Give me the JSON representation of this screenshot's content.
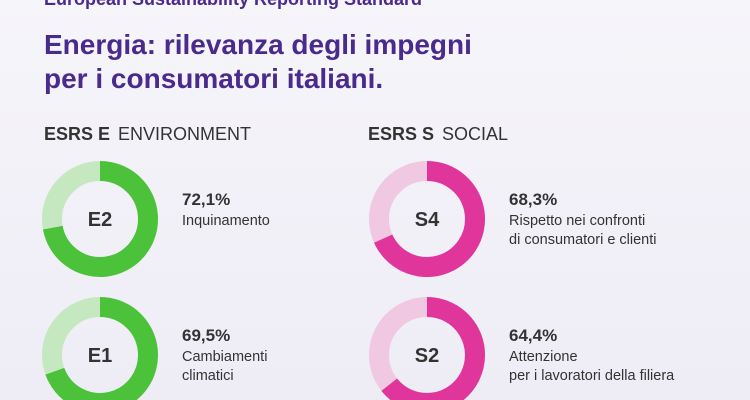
{
  "header": {
    "kicker": "European Sustainability Reporting Standard",
    "title_lines": [
      "Energia: rilevanza degli impegni",
      "per i consumatori italiani."
    ]
  },
  "sections": [
    {
      "code": "ESRS E",
      "name": "ENVIRONMENT"
    },
    {
      "code": "ESRS S",
      "name": "SOCIAL"
    }
  ],
  "chart_data": [
    {
      "type": "donut",
      "center_label": "E2",
      "values": [
        72.1
      ],
      "value_labels": [
        "72,1%"
      ],
      "label_lines": [
        "Inquinamento"
      ],
      "color": "#4cc23a",
      "track_color": "#c6e8c1"
    },
    {
      "type": "donut",
      "center_label": "E1",
      "values": [
        69.5
      ],
      "value_labels": [
        "69,5%"
      ],
      "label_lines": [
        "Cambiamenti",
        "climatici"
      ],
      "color": "#4cc23a",
      "track_color": "#c6e8c1"
    },
    {
      "type": "donut",
      "center_label": "S4",
      "values": [
        68.3
      ],
      "value_labels": [
        "68,3%"
      ],
      "label_lines": [
        "Rispetto nei confronti",
        "di consumatori e clienti"
      ],
      "color": "#e0359b",
      "track_color": "#f1c8e2"
    },
    {
      "type": "donut",
      "center_label": "S2",
      "values": [
        64.4
      ],
      "value_labels": [
        "64,4%"
      ],
      "label_lines": [
        "Attenzione",
        "per i lavoratori della filiera"
      ],
      "color": "#e0359b",
      "track_color": "#f1c8e2"
    }
  ]
}
